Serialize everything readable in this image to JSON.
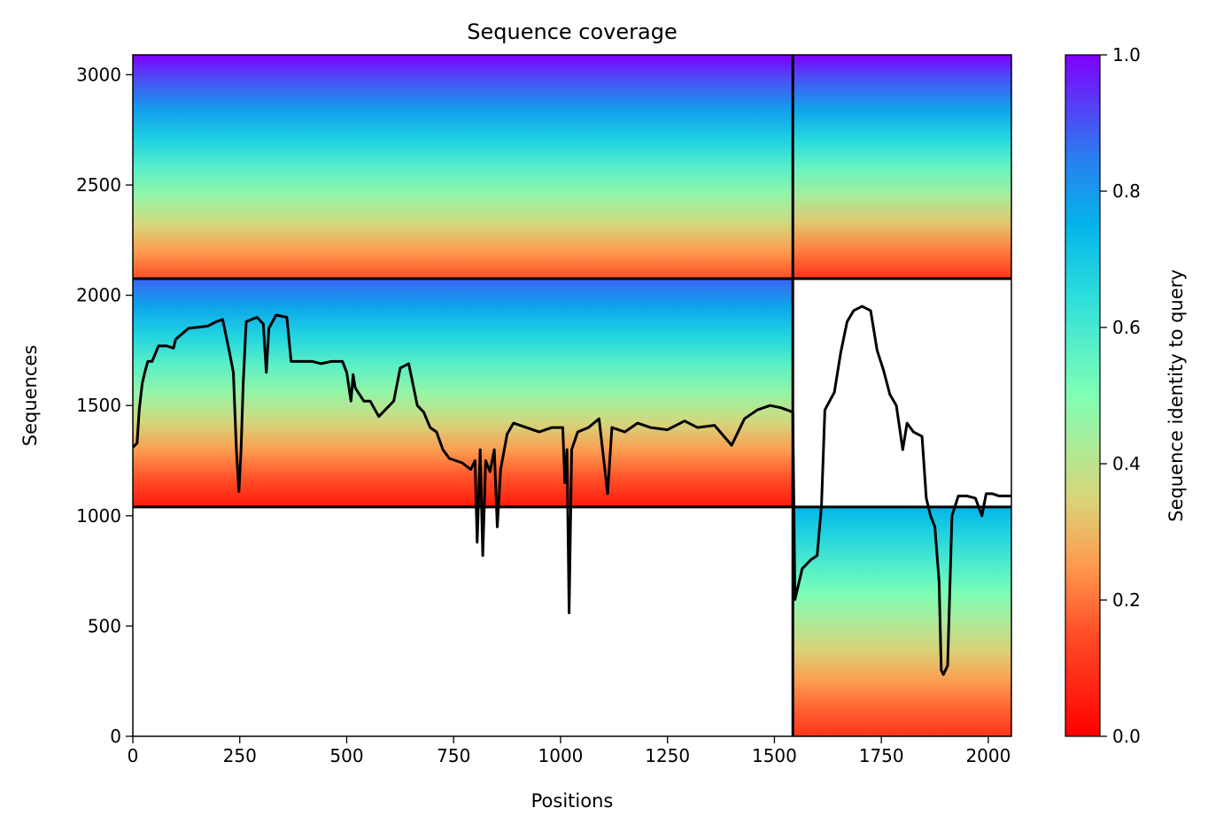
{
  "chart_data": {
    "type": "heatmap",
    "title": "Sequence coverage",
    "xlabel": "Positions",
    "ylabel": "Sequences",
    "xlim": [
      0,
      2054
    ],
    "ylim": [
      0,
      3090
    ],
    "xticks": [
      0,
      250,
      500,
      750,
      1000,
      1250,
      1500,
      1750,
      2000
    ],
    "yticks": [
      0,
      500,
      1000,
      1500,
      2000,
      2500,
      3000
    ],
    "colorbar": {
      "label": "Sequence identity to query",
      "range": [
        0.0,
        1.0
      ],
      "ticks": [
        "0.0",
        "0.2",
        "0.4",
        "0.6",
        "0.8",
        "1.0"
      ],
      "colormap": "rainbow"
    },
    "boundaries": {
      "chain_split_x": 1543,
      "row_splits_y": [
        1040,
        2075
      ]
    },
    "coverage_blocks": [
      {
        "rows": [
          2075,
          3090
        ],
        "cols": [
          0,
          1543
        ],
        "identity_top": 1.0,
        "identity_bottom": 0.15
      },
      {
        "rows": [
          2075,
          3090
        ],
        "cols": [
          1543,
          2054
        ],
        "identity_top": 1.0,
        "identity_bottom": 0.1
      },
      {
        "rows": [
          1040,
          2075
        ],
        "cols": [
          0,
          1543
        ],
        "identity_top": 0.88,
        "identity_bottom": 0.05
      },
      {
        "rows": [
          0,
          1040
        ],
        "cols": [
          1543,
          2054
        ],
        "identity_top": 0.75,
        "identity_bottom": 0.1
      }
    ],
    "coverage_line": {
      "color": "#000000",
      "points": [
        [
          0,
          1310
        ],
        [
          10,
          1330
        ],
        [
          15,
          1480
        ],
        [
          22,
          1600
        ],
        [
          28,
          1650
        ],
        [
          35,
          1700
        ],
        [
          45,
          1700
        ],
        [
          60,
          1770
        ],
        [
          80,
          1770
        ],
        [
          95,
          1760
        ],
        [
          100,
          1800
        ],
        [
          130,
          1850
        ],
        [
          175,
          1860
        ],
        [
          195,
          1880
        ],
        [
          210,
          1890
        ],
        [
          225,
          1750
        ],
        [
          235,
          1650
        ],
        [
          242,
          1300
        ],
        [
          248,
          1110
        ],
        [
          253,
          1300
        ],
        [
          258,
          1600
        ],
        [
          265,
          1880
        ],
        [
          290,
          1900
        ],
        [
          305,
          1870
        ],
        [
          312,
          1650
        ],
        [
          318,
          1850
        ],
        [
          335,
          1910
        ],
        [
          360,
          1900
        ],
        [
          370,
          1700
        ],
        [
          420,
          1700
        ],
        [
          440,
          1690
        ],
        [
          465,
          1700
        ],
        [
          490,
          1700
        ],
        [
          500,
          1650
        ],
        [
          510,
          1520
        ],
        [
          515,
          1640
        ],
        [
          520,
          1580
        ],
        [
          540,
          1520
        ],
        [
          555,
          1520
        ],
        [
          575,
          1450
        ],
        [
          590,
          1480
        ],
        [
          610,
          1520
        ],
        [
          625,
          1670
        ],
        [
          645,
          1690
        ],
        [
          665,
          1500
        ],
        [
          680,
          1470
        ],
        [
          695,
          1400
        ],
        [
          710,
          1380
        ],
        [
          725,
          1300
        ],
        [
          740,
          1260
        ],
        [
          755,
          1250
        ],
        [
          770,
          1240
        ],
        [
          790,
          1210
        ],
        [
          800,
          1250
        ],
        [
          805,
          880
        ],
        [
          812,
          1300
        ],
        [
          818,
          820
        ],
        [
          825,
          1250
        ],
        [
          835,
          1200
        ],
        [
          845,
          1300
        ],
        [
          852,
          950
        ],
        [
          860,
          1210
        ],
        [
          875,
          1370
        ],
        [
          890,
          1420
        ],
        [
          920,
          1400
        ],
        [
          950,
          1380
        ],
        [
          980,
          1400
        ],
        [
          1005,
          1400
        ],
        [
          1010,
          1150
        ],
        [
          1015,
          1300
        ],
        [
          1020,
          560
        ],
        [
          1026,
          1300
        ],
        [
          1040,
          1380
        ],
        [
          1065,
          1400
        ],
        [
          1090,
          1440
        ],
        [
          1110,
          1100
        ],
        [
          1120,
          1400
        ],
        [
          1150,
          1380
        ],
        [
          1180,
          1420
        ],
        [
          1210,
          1400
        ],
        [
          1250,
          1390
        ],
        [
          1290,
          1430
        ],
        [
          1320,
          1400
        ],
        [
          1360,
          1410
        ],
        [
          1400,
          1320
        ],
        [
          1430,
          1440
        ],
        [
          1460,
          1480
        ],
        [
          1490,
          1500
        ],
        [
          1515,
          1490
        ],
        [
          1543,
          1470
        ],
        [
          1548,
          620
        ],
        [
          1565,
          760
        ],
        [
          1585,
          800
        ],
        [
          1600,
          820
        ],
        [
          1610,
          1050
        ],
        [
          1618,
          1480
        ],
        [
          1640,
          1560
        ],
        [
          1655,
          1740
        ],
        [
          1670,
          1880
        ],
        [
          1685,
          1930
        ],
        [
          1705,
          1950
        ],
        [
          1725,
          1930
        ],
        [
          1740,
          1750
        ],
        [
          1755,
          1660
        ],
        [
          1770,
          1550
        ],
        [
          1785,
          1500
        ],
        [
          1800,
          1300
        ],
        [
          1810,
          1420
        ],
        [
          1825,
          1380
        ],
        [
          1845,
          1360
        ],
        [
          1855,
          1080
        ],
        [
          1865,
          1000
        ],
        [
          1875,
          950
        ],
        [
          1885,
          700
        ],
        [
          1890,
          300
        ],
        [
          1895,
          280
        ],
        [
          1905,
          320
        ],
        [
          1915,
          1000
        ],
        [
          1930,
          1090
        ],
        [
          1950,
          1090
        ],
        [
          1970,
          1080
        ],
        [
          1985,
          1000
        ],
        [
          1995,
          1100
        ],
        [
          2010,
          1100
        ],
        [
          2025,
          1090
        ],
        [
          2054,
          1090
        ]
      ]
    }
  }
}
